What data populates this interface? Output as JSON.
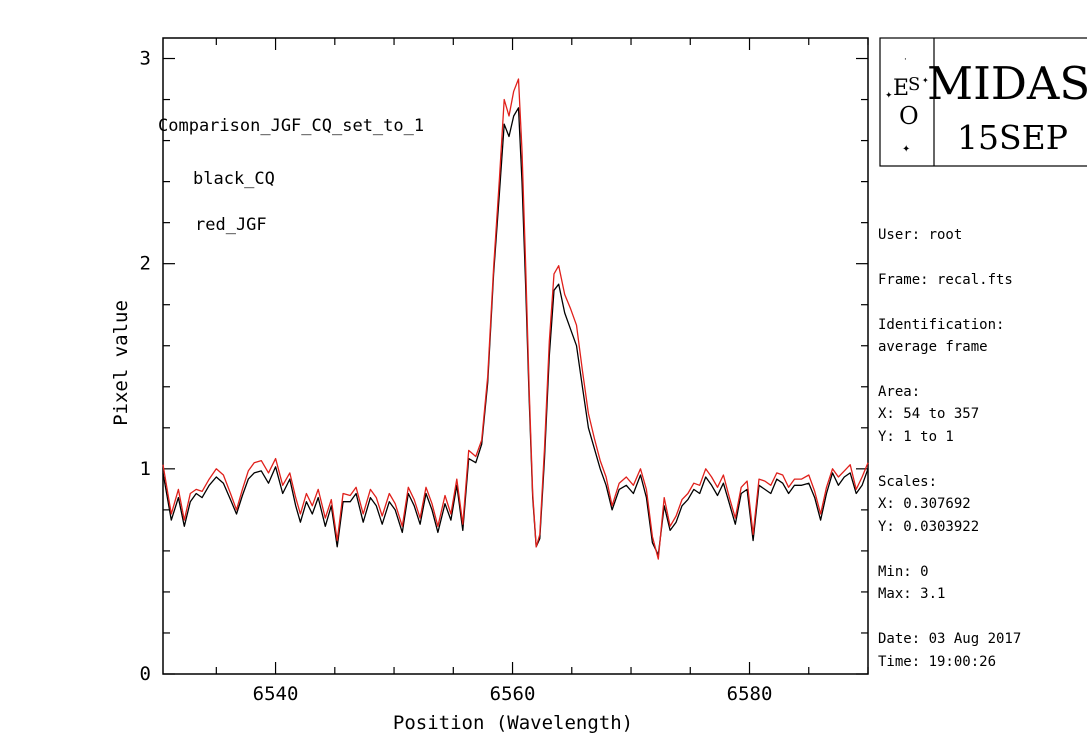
{
  "chart_data": {
    "type": "line",
    "xlabel": "Position (Wavelength)",
    "ylabel": "Pixel value",
    "xlim": [
      6530.5,
      6590
    ],
    "ylim": [
      0,
      3.1
    ],
    "x_ticks": [
      6540,
      6560,
      6580
    ],
    "x_tick_labels": [
      "6540",
      "6560",
      "6580"
    ],
    "y_ticks": [
      0,
      1,
      2,
      3
    ],
    "y_tick_labels": [
      "0",
      "1",
      "2",
      "3"
    ],
    "annotations": [
      "Comparison_JGF_CQ_set_to_1",
      "black_CQ",
      "red_JGF"
    ],
    "series": [
      {
        "color": "#000000",
        "x": [
          6530.5,
          6531.2,
          6531.8,
          6532.3,
          6532.8,
          6533.3,
          6533.8,
          6534.4,
          6535,
          6535.6,
          6536.2,
          6536.7,
          6537.2,
          6537.7,
          6538.2,
          6538.8,
          6539.4,
          6540,
          6540.6,
          6541.2,
          6541.7,
          6542.1,
          6542.6,
          6543.1,
          6543.6,
          6544.2,
          6544.7,
          6545.2,
          6545.7,
          6546.3,
          6546.8,
          6547.4,
          6548,
          6548.5,
          6549,
          6549.6,
          6550.1,
          6550.7,
          6551.2,
          6551.7,
          6552.2,
          6552.7,
          6553.2,
          6553.7,
          6554.3,
          6554.8,
          6555.3,
          6555.8,
          6556.3,
          6556.9,
          6557.4,
          6557.9,
          6558.4,
          6558.9,
          6559.3,
          6559.7,
          6560.1,
          6560.5,
          6560.8,
          6561.1,
          6561.4,
          6561.7,
          6562,
          6562.3,
          6562.7,
          6563.1,
          6563.5,
          6563.9,
          6564.4,
          6564.9,
          6565.4,
          6565.9,
          6566.4,
          6566.9,
          6567.4,
          6567.9,
          6568.4,
          6569,
          6569.6,
          6570.2,
          6570.8,
          6571.3,
          6571.8,
          6572.3,
          6572.8,
          6573.3,
          6573.8,
          6574.3,
          6574.8,
          6575.3,
          6575.8,
          6576.3,
          6576.8,
          6577.3,
          6577.8,
          6578.3,
          6578.8,
          6579.3,
          6579.8,
          6580.3,
          6580.8,
          6581.3,
          6581.8,
          6582.3,
          6582.8,
          6583.3,
          6583.8,
          6584.4,
          6585,
          6585.5,
          6586,
          6586.5,
          6587,
          6587.5,
          6588,
          6588.5,
          6589,
          6589.5,
          6590
        ],
        "y": [
          0.98,
          0.75,
          0.86,
          0.72,
          0.84,
          0.88,
          0.86,
          0.92,
          0.96,
          0.93,
          0.85,
          0.78,
          0.87,
          0.95,
          0.98,
          0.99,
          0.93,
          1.01,
          0.88,
          0.95,
          0.82,
          0.74,
          0.84,
          0.78,
          0.86,
          0.72,
          0.82,
          0.62,
          0.84,
          0.84,
          0.88,
          0.74,
          0.86,
          0.82,
          0.73,
          0.84,
          0.8,
          0.69,
          0.88,
          0.82,
          0.73,
          0.88,
          0.8,
          0.69,
          0.83,
          0.75,
          0.92,
          0.7,
          1.05,
          1.03,
          1.12,
          1.42,
          1.95,
          2.35,
          2.68,
          2.62,
          2.72,
          2.76,
          2.4,
          1.9,
          1.35,
          0.86,
          0.62,
          0.66,
          1.05,
          1.55,
          1.87,
          1.9,
          1.76,
          1.68,
          1.6,
          1.4,
          1.2,
          1.1,
          1.0,
          0.92,
          0.8,
          0.9,
          0.92,
          0.88,
          0.97,
          0.86,
          0.64,
          0.58,
          0.82,
          0.7,
          0.74,
          0.82,
          0.85,
          0.9,
          0.88,
          0.96,
          0.92,
          0.87,
          0.93,
          0.83,
          0.73,
          0.88,
          0.9,
          0.65,
          0.92,
          0.9,
          0.88,
          0.95,
          0.93,
          0.88,
          0.92,
          0.92,
          0.93,
          0.86,
          0.75,
          0.88,
          0.98,
          0.92,
          0.96,
          0.98,
          0.88,
          0.92,
          1.0
        ],
        "legend": "black_CQ"
      },
      {
        "color": "#e0201b",
        "x": [
          6530.5,
          6531.2,
          6531.8,
          6532.3,
          6532.8,
          6533.3,
          6533.8,
          6534.4,
          6535,
          6535.6,
          6536.2,
          6536.7,
          6537.2,
          6537.7,
          6538.2,
          6538.8,
          6539.4,
          6540,
          6540.6,
          6541.2,
          6541.7,
          6542.1,
          6542.6,
          6543.1,
          6543.6,
          6544.2,
          6544.7,
          6545.2,
          6545.7,
          6546.3,
          6546.8,
          6547.4,
          6548,
          6548.5,
          6549,
          6549.6,
          6550.1,
          6550.7,
          6551.2,
          6551.7,
          6552.2,
          6552.7,
          6553.2,
          6553.7,
          6554.3,
          6554.8,
          6555.3,
          6555.8,
          6556.3,
          6556.9,
          6557.4,
          6557.9,
          6558.4,
          6558.9,
          6559.3,
          6559.7,
          6560.1,
          6560.5,
          6560.8,
          6561.1,
          6561.4,
          6561.7,
          6562,
          6562.3,
          6562.7,
          6563.1,
          6563.5,
          6563.9,
          6564.4,
          6564.9,
          6565.4,
          6565.9,
          6566.4,
          6566.9,
          6567.4,
          6567.9,
          6568.4,
          6569,
          6569.6,
          6570.2,
          6570.8,
          6571.3,
          6571.8,
          6572.3,
          6572.8,
          6573.3,
          6573.8,
          6574.3,
          6574.8,
          6575.3,
          6575.8,
          6576.3,
          6576.8,
          6577.3,
          6577.8,
          6578.3,
          6578.8,
          6579.3,
          6579.8,
          6580.3,
          6580.8,
          6581.3,
          6581.8,
          6582.3,
          6582.8,
          6583.3,
          6583.8,
          6584.4,
          6585,
          6585.5,
          6586,
          6586.5,
          6587,
          6587.5,
          6588,
          6588.5,
          6589,
          6589.5,
          6590
        ],
        "y": [
          1.02,
          0.78,
          0.9,
          0.75,
          0.88,
          0.9,
          0.89,
          0.95,
          1.0,
          0.97,
          0.88,
          0.8,
          0.9,
          0.99,
          1.03,
          1.04,
          0.98,
          1.05,
          0.92,
          0.98,
          0.86,
          0.78,
          0.88,
          0.82,
          0.9,
          0.76,
          0.85,
          0.65,
          0.88,
          0.87,
          0.91,
          0.78,
          0.9,
          0.86,
          0.77,
          0.88,
          0.83,
          0.72,
          0.91,
          0.85,
          0.76,
          0.91,
          0.83,
          0.72,
          0.87,
          0.78,
          0.95,
          0.73,
          1.09,
          1.06,
          1.14,
          1.45,
          1.98,
          2.42,
          2.8,
          2.72,
          2.84,
          2.9,
          2.55,
          2.0,
          1.4,
          0.88,
          0.62,
          0.68,
          1.1,
          1.62,
          1.95,
          1.99,
          1.85,
          1.78,
          1.7,
          1.48,
          1.27,
          1.15,
          1.04,
          0.96,
          0.82,
          0.93,
          0.96,
          0.92,
          1.0,
          0.9,
          0.67,
          0.56,
          0.86,
          0.72,
          0.77,
          0.85,
          0.88,
          0.93,
          0.92,
          1.0,
          0.96,
          0.91,
          0.97,
          0.86,
          0.76,
          0.91,
          0.94,
          0.68,
          0.95,
          0.94,
          0.92,
          0.98,
          0.97,
          0.91,
          0.95,
          0.95,
          0.97,
          0.89,
          0.78,
          0.91,
          1.0,
          0.96,
          0.99,
          1.02,
          0.9,
          0.96,
          1.03
        ],
        "legend": "red_JGF"
      }
    ]
  },
  "logo": {
    "eso_letters": [
      "E",
      "S",
      "O"
    ],
    "title": "MIDAS",
    "subtitle": "15SEP"
  },
  "info_panel": {
    "user": "User: root",
    "frame": "Frame: recal.fts",
    "identification_label": "Identification:",
    "identification_value": "average frame",
    "area_label": "Area:",
    "area_x": "X: 54 to 357",
    "area_y": "Y: 1 to 1",
    "scales_label": "Scales:",
    "scales_x": "X: 0.307692",
    "scales_y": "Y: 0.0303922",
    "min": "Min: 0",
    "max": "Max: 3.1",
    "date": "Date: 03 Aug 2017",
    "time": "Time: 19:00:26"
  }
}
